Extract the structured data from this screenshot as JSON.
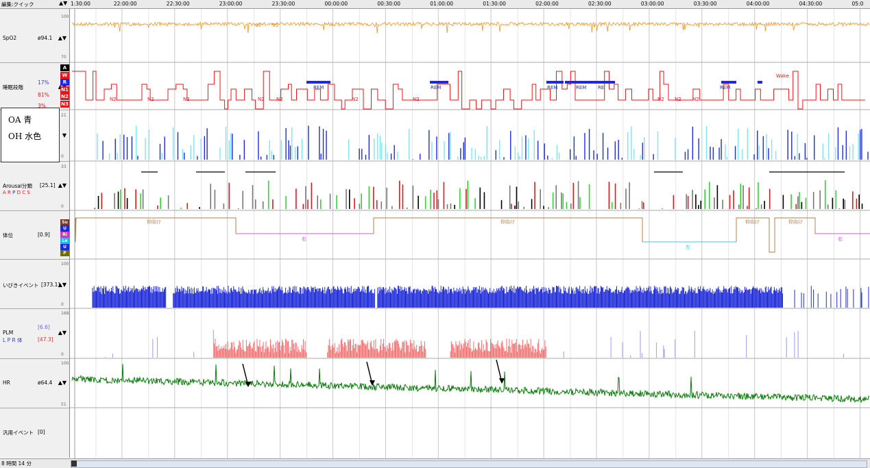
{
  "toolbar": {
    "mode_label": "編集:クイック",
    "nav_arrows": "▲▼"
  },
  "timeline": {
    "ticks": [
      "1:30:00",
      "22:00:00",
      "22:30:00",
      "23:00:00",
      "23:30:00",
      "00:00:00",
      "00:30:00",
      "01:00:00",
      "01:30:00",
      "02:00:00",
      "02:30:00",
      "03:00:00",
      "03:30:00",
      "04:00:00",
      "04:30:00",
      "05:0"
    ]
  },
  "channels": {
    "spo2": {
      "name": "SpO2",
      "value": "ø94.1",
      "scale_top": "100",
      "scale_bottom": "70",
      "labels": [
        "95",
        "95"
      ],
      "color": "#f5921e"
    },
    "sleep_stage": {
      "name": "睡眠段階",
      "pct_a": "17%",
      "pct_b": "81%",
      "pct_c": "3%",
      "stages": [
        "A",
        "W",
        "R",
        "N1",
        "N2",
        "N3"
      ],
      "stage_colors": [
        "#000000",
        "#e8141a",
        "#1e2ad8",
        "#e8141a",
        "#e8141a",
        "#e8141a"
      ],
      "color": "#e8141a",
      "rem_color": "#1e2ad8"
    },
    "resp": {
      "scale_top": "21",
      "scale_bottom": "0",
      "arrow": "▼"
    },
    "arousal": {
      "name": "Arousal分類",
      "value": "[25.1]",
      "sub": [
        "A",
        "R",
        "P",
        "D",
        "C",
        "S"
      ],
      "sub_colors": [
        "#e8141a",
        "#e8141a",
        "#1e2ad8",
        "#e8141a",
        "#e8141a",
        "#e8141a"
      ],
      "scale_top": "33",
      "scale_bottom": "0"
    },
    "position": {
      "name": "体位",
      "value": "[0.9]",
      "codes": [
        "Su",
        "U",
        "Ri",
        "Le",
        "U",
        "P"
      ],
      "code_colors": [
        "#7a3a2a",
        "#1e2ad8",
        "#c040c0",
        "#00c8e0",
        "#1e2ad8",
        "#707000"
      ],
      "labels": {
        "supine": "仰向け",
        "right": "右",
        "left": "左"
      }
    },
    "snore": {
      "name": "いびきイベント",
      "value": "[373.1]",
      "scale_top": "100",
      "scale_bottom": "0",
      "color": "#1e2ad8"
    },
    "plm": {
      "name": "PLM",
      "value_a": "[6.6]",
      "value_b": "[47.3]",
      "sub": "L P R 体",
      "scale_top": "168",
      "scale_bottom": "0"
    },
    "hr": {
      "name": "HR",
      "value": "ø64.4",
      "scale_top": "100",
      "scale_bottom": "51",
      "color": "#0a7a0a"
    },
    "general": {
      "name": "汎用イベント",
      "value": "[0]"
    }
  },
  "legend": {
    "line1": "OA 青",
    "line2": "OH 水色"
  },
  "hypnogram_labels": [
    "N2",
    "N2",
    "N2",
    "N2",
    "N2",
    "REM",
    "N2",
    "REM",
    "N2",
    "REM",
    "REM",
    "RE",
    "N2",
    "N2",
    "N2",
    "REM",
    "Wake"
  ],
  "status": {
    "duration": "8 時間 14 分"
  }
}
